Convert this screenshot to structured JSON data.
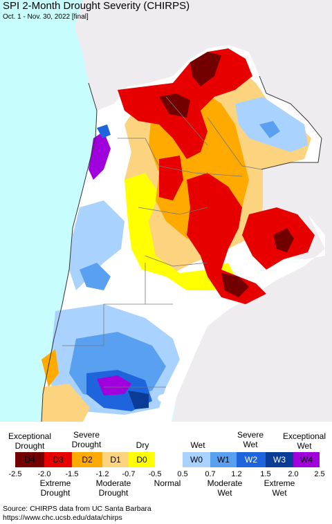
{
  "header": {
    "title": "SPI 2-Month Drought Severity (CHIRPS)",
    "subtitle": "Oct. 1 - Nov. 30, 2022 [final]"
  },
  "colors": {
    "ocean": "#c8fdfd",
    "land_outside": "#efecf0",
    "normal": "#ffffff",
    "borders": "#777777"
  },
  "legend": {
    "top_labels": [
      "Exceptional\nDrought",
      "Severe\nDrought",
      "Dry",
      "Wet",
      "Severe\nWet",
      "Exceptional\nWet"
    ],
    "bottom_labels": [
      "Extreme\nDrought",
      "Moderate\nDrought",
      "Normal",
      "Moderate\nWet",
      "Extreme\nWet"
    ],
    "classes": [
      {
        "code": "D4",
        "color": "#730000"
      },
      {
        "code": "D3",
        "color": "#e60000"
      },
      {
        "code": "D2",
        "color": "#ffaa00"
      },
      {
        "code": "D1",
        "color": "#fcd37f"
      },
      {
        "code": "D0",
        "color": "#ffff00"
      },
      {
        "code": "",
        "color": "#ffffff"
      },
      {
        "code": "W0",
        "color": "#aad2ff"
      },
      {
        "code": "W1",
        "color": "#5aa0f0"
      },
      {
        "code": "W2",
        "color": "#1e64dc"
      },
      {
        "code": "W3",
        "color": "#0a3c96"
      },
      {
        "code": "W4",
        "color": "#a000dc"
      }
    ],
    "ticks": [
      "-2.5",
      "-2.0",
      "-1.5",
      "-1.2",
      "-0.7",
      "-0.5",
      "0.5",
      "0.7",
      "1.2",
      "1.5",
      "2.0",
      "2.5"
    ]
  },
  "source": {
    "line1": "Source: CHIRPS data from UC Santa Barbara",
    "line2": "https://www.chc.ucsb.edu/data/chirps"
  }
}
